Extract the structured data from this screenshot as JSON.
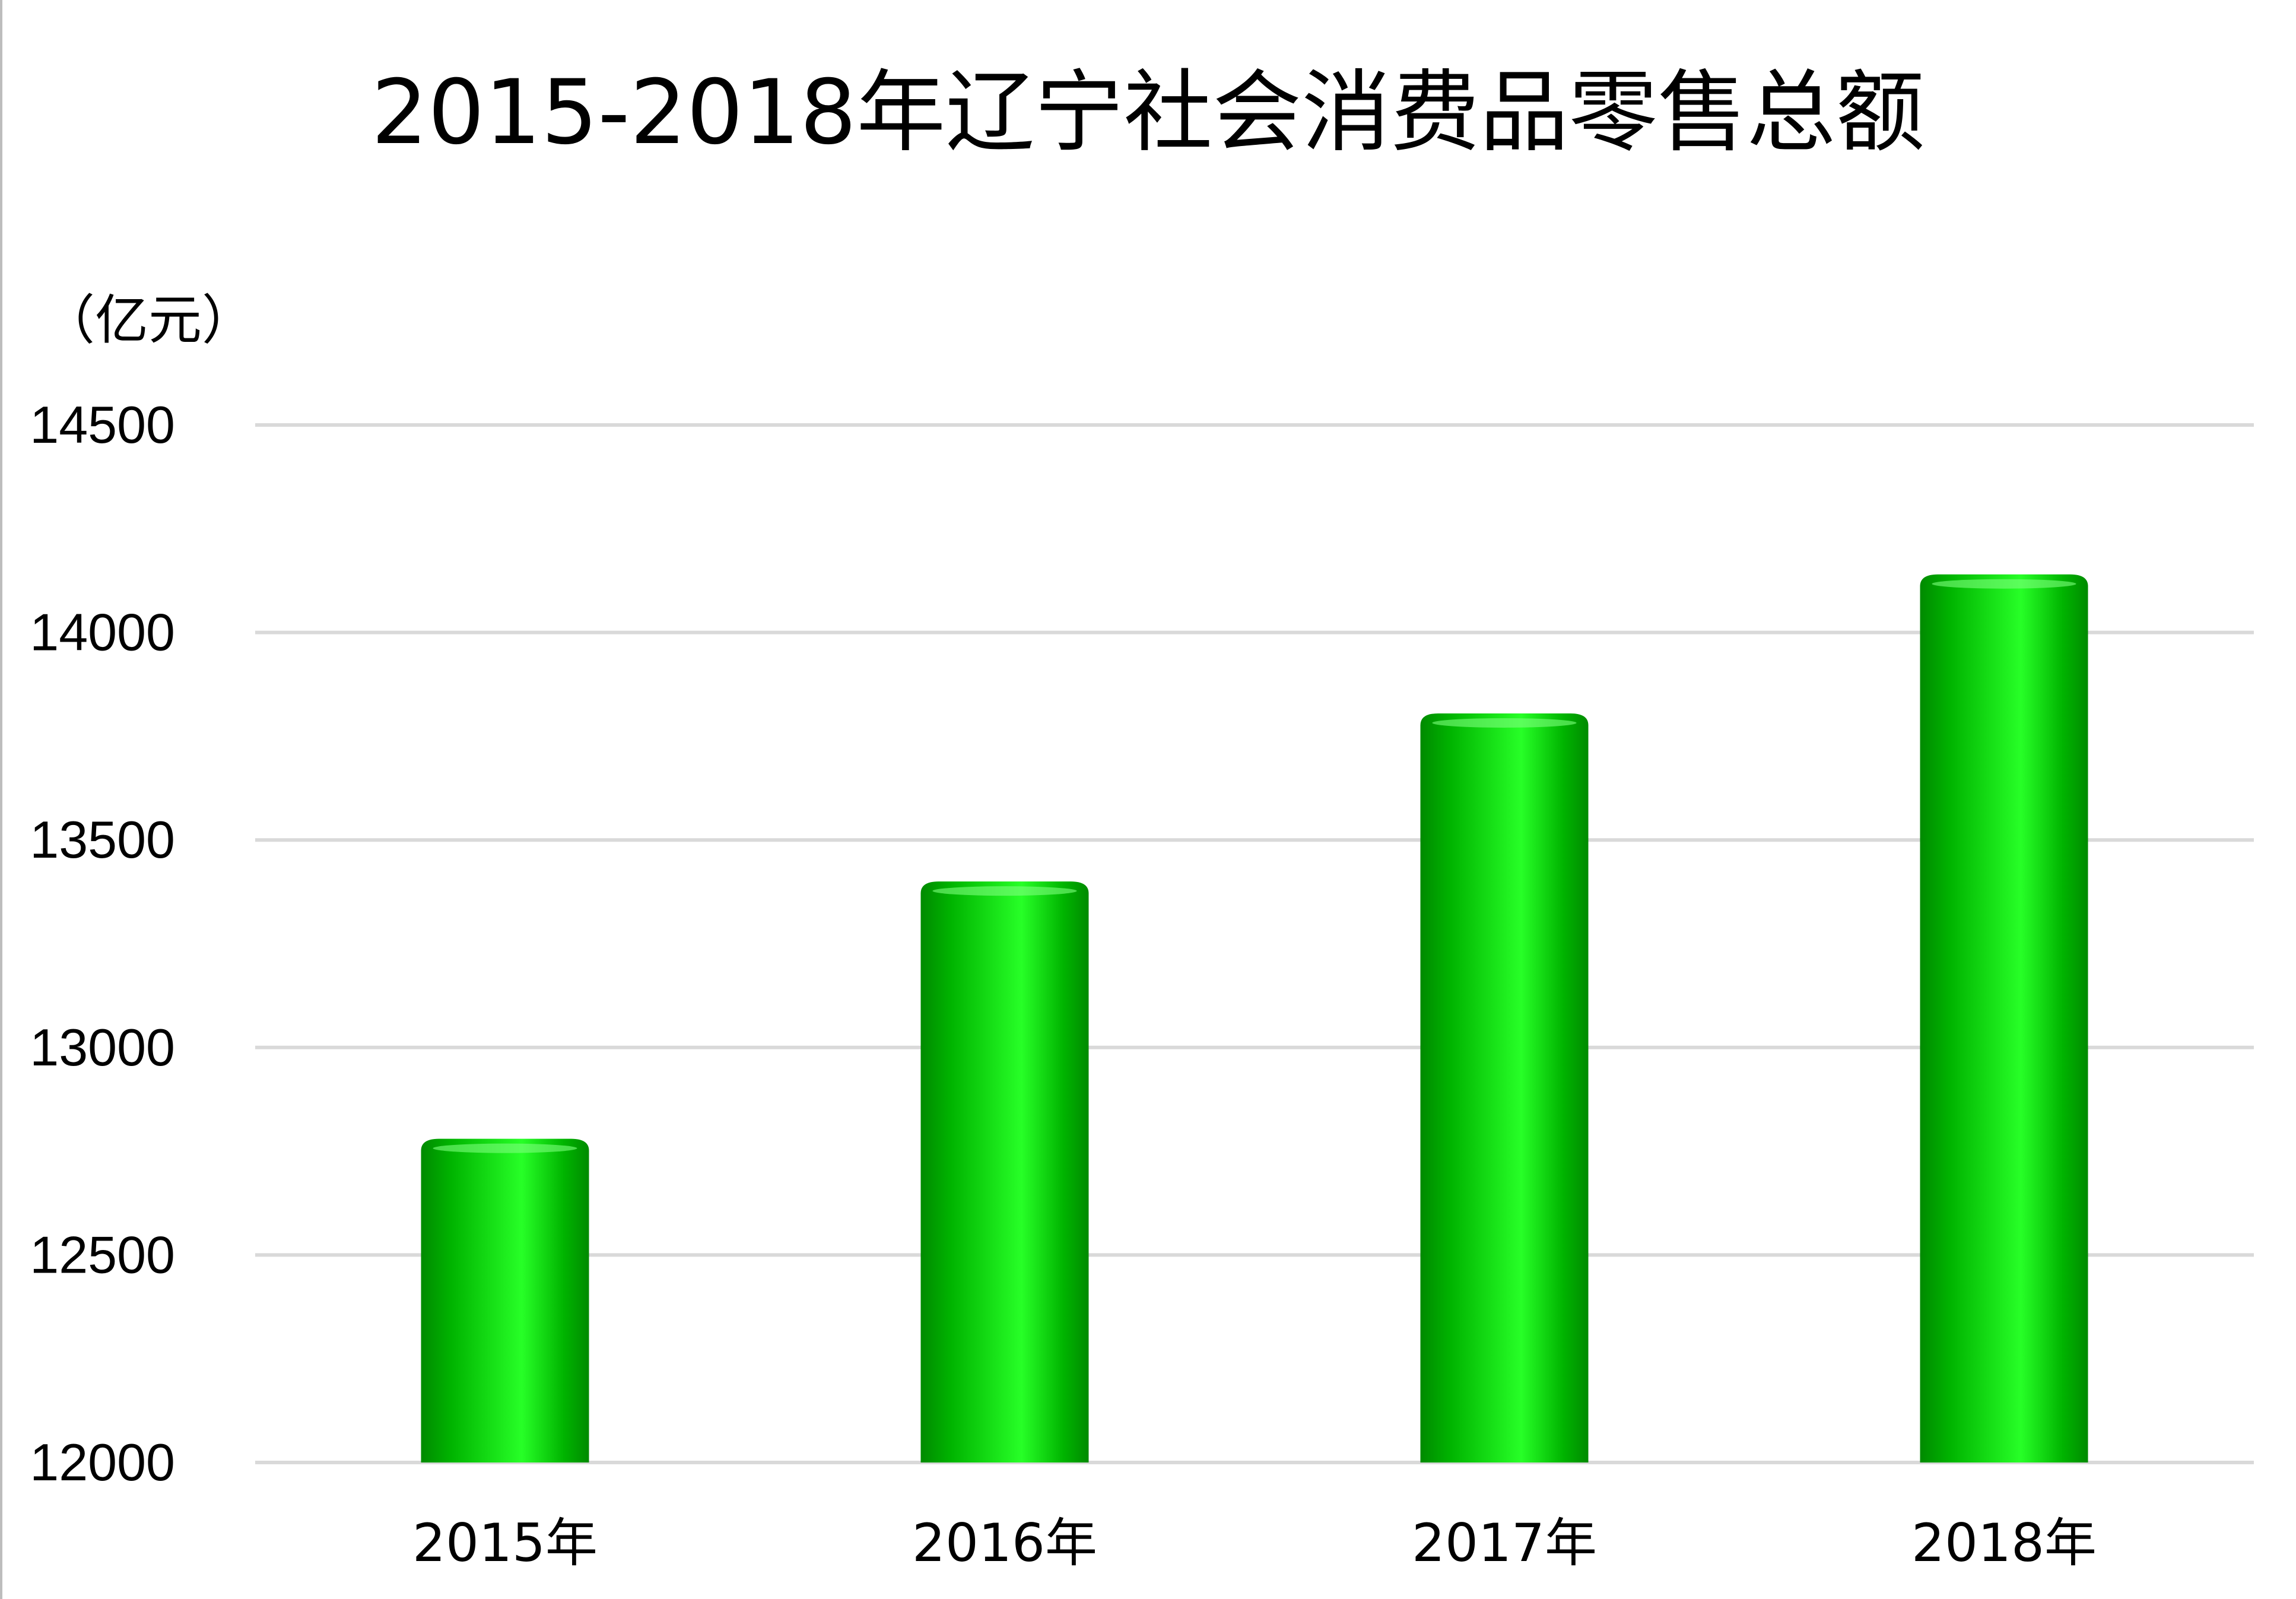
{
  "chart_data": {
    "type": "bar",
    "title": "2015-2018年辽宁社会消费品零售总额",
    "ylabel": "（亿元）",
    "xlabel": "",
    "categories": [
      "2015年",
      "2016年",
      "2017年",
      "2018年"
    ],
    "values": [
      12780,
      13400,
      13805,
      14140
    ],
    "ylim": [
      12000,
      14500
    ],
    "yticks": [
      "12000",
      "12500",
      "13000",
      "13500",
      "14000",
      "14500"
    ],
    "grid": true,
    "legend": "none",
    "colors": {
      "bar_dark": "#008a00",
      "bar_mid": "#00b400",
      "bar_light": "#27ff27",
      "grid": "#d9d9d9"
    }
  }
}
